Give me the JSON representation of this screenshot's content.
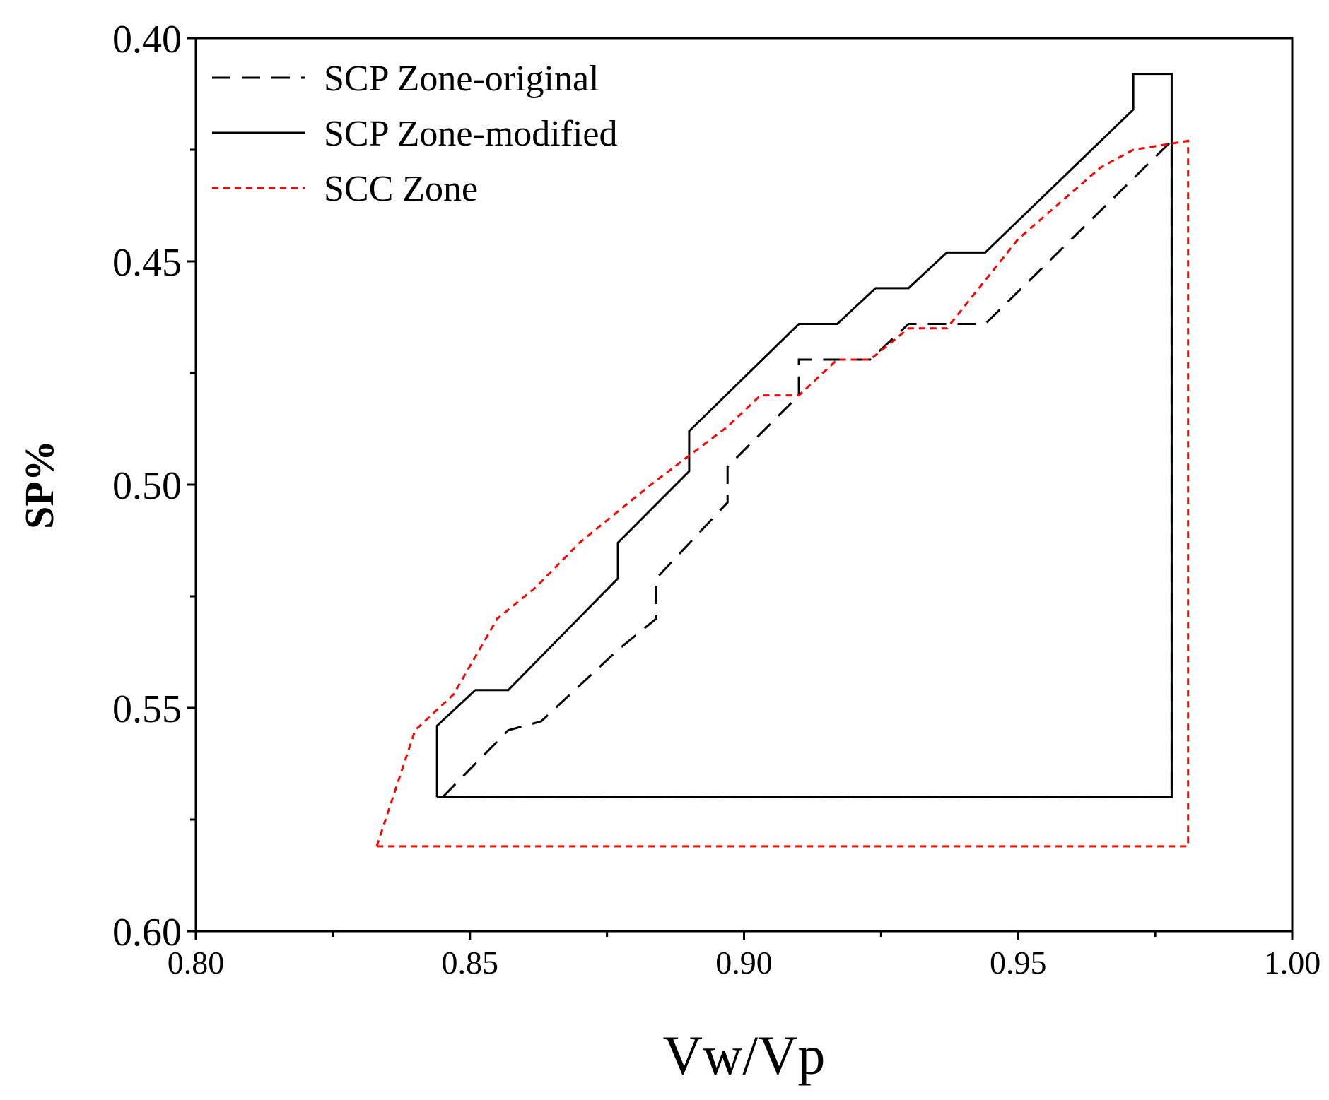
{
  "chart_data": {
    "type": "line",
    "title": "",
    "xlabel": "Vw/Vp",
    "ylabel": "SP%",
    "xlim": [
      0.8,
      1.0
    ],
    "ylim": [
      0.6,
      0.4
    ],
    "y_inverted": true,
    "x_ticks": [
      0.8,
      0.85,
      0.9,
      0.95,
      1.0
    ],
    "x_tick_labels": [
      "0.80",
      "0.85",
      "0.90",
      "0.95",
      "1.00"
    ],
    "x_minor_ticks": [
      0.825,
      0.875,
      0.925,
      0.975
    ],
    "y_ticks": [
      0.4,
      0.45,
      0.5,
      0.55,
      0.6
    ],
    "y_tick_labels": [
      "0.40",
      "0.45",
      "0.50",
      "0.55",
      "0.60"
    ],
    "y_minor_ticks": [
      0.425,
      0.475,
      0.525,
      0.575
    ],
    "grid": false,
    "legend_position": "top-left",
    "series": [
      {
        "name": "SCP Zone-original",
        "style": "dashed",
        "color": "#000000",
        "x": [
          0.845,
          0.857,
          0.863,
          0.877,
          0.884,
          0.884,
          0.897,
          0.897,
          0.91,
          0.91,
          0.923,
          0.93,
          0.944,
          0.978,
          0.978,
          0.845
        ],
        "y": [
          0.57,
          0.555,
          0.553,
          0.537,
          0.53,
          0.521,
          0.504,
          0.496,
          0.48,
          0.472,
          0.472,
          0.464,
          0.464,
          0.423,
          0.57,
          0.57
        ]
      },
      {
        "name": "SCP Zone-modified",
        "style": "solid",
        "color": "#000000",
        "x": [
          0.844,
          0.844,
          0.851,
          0.857,
          0.877,
          0.877,
          0.89,
          0.89,
          0.91,
          0.917,
          0.924,
          0.93,
          0.937,
          0.944,
          0.971,
          0.971,
          0.978,
          0.978,
          0.844
        ],
        "y": [
          0.57,
          0.554,
          0.546,
          0.546,
          0.521,
          0.513,
          0.497,
          0.488,
          0.464,
          0.464,
          0.456,
          0.456,
          0.448,
          0.448,
          0.416,
          0.408,
          0.408,
          0.57,
          0.57
        ]
      },
      {
        "name": "SCC Zone",
        "style": "dotted",
        "color": "#ff0000",
        "x": [
          0.833,
          0.84,
          0.847,
          0.855,
          0.862,
          0.87,
          0.883,
          0.897,
          0.903,
          0.91,
          0.917,
          0.923,
          0.93,
          0.937,
          0.95,
          0.965,
          0.971,
          0.981,
          0.981,
          0.833
        ],
        "y": [
          0.581,
          0.555,
          0.547,
          0.53,
          0.523,
          0.513,
          0.5,
          0.487,
          0.48,
          0.48,
          0.472,
          0.472,
          0.465,
          0.465,
          0.445,
          0.429,
          0.425,
          0.423,
          0.581,
          0.581
        ]
      }
    ]
  }
}
